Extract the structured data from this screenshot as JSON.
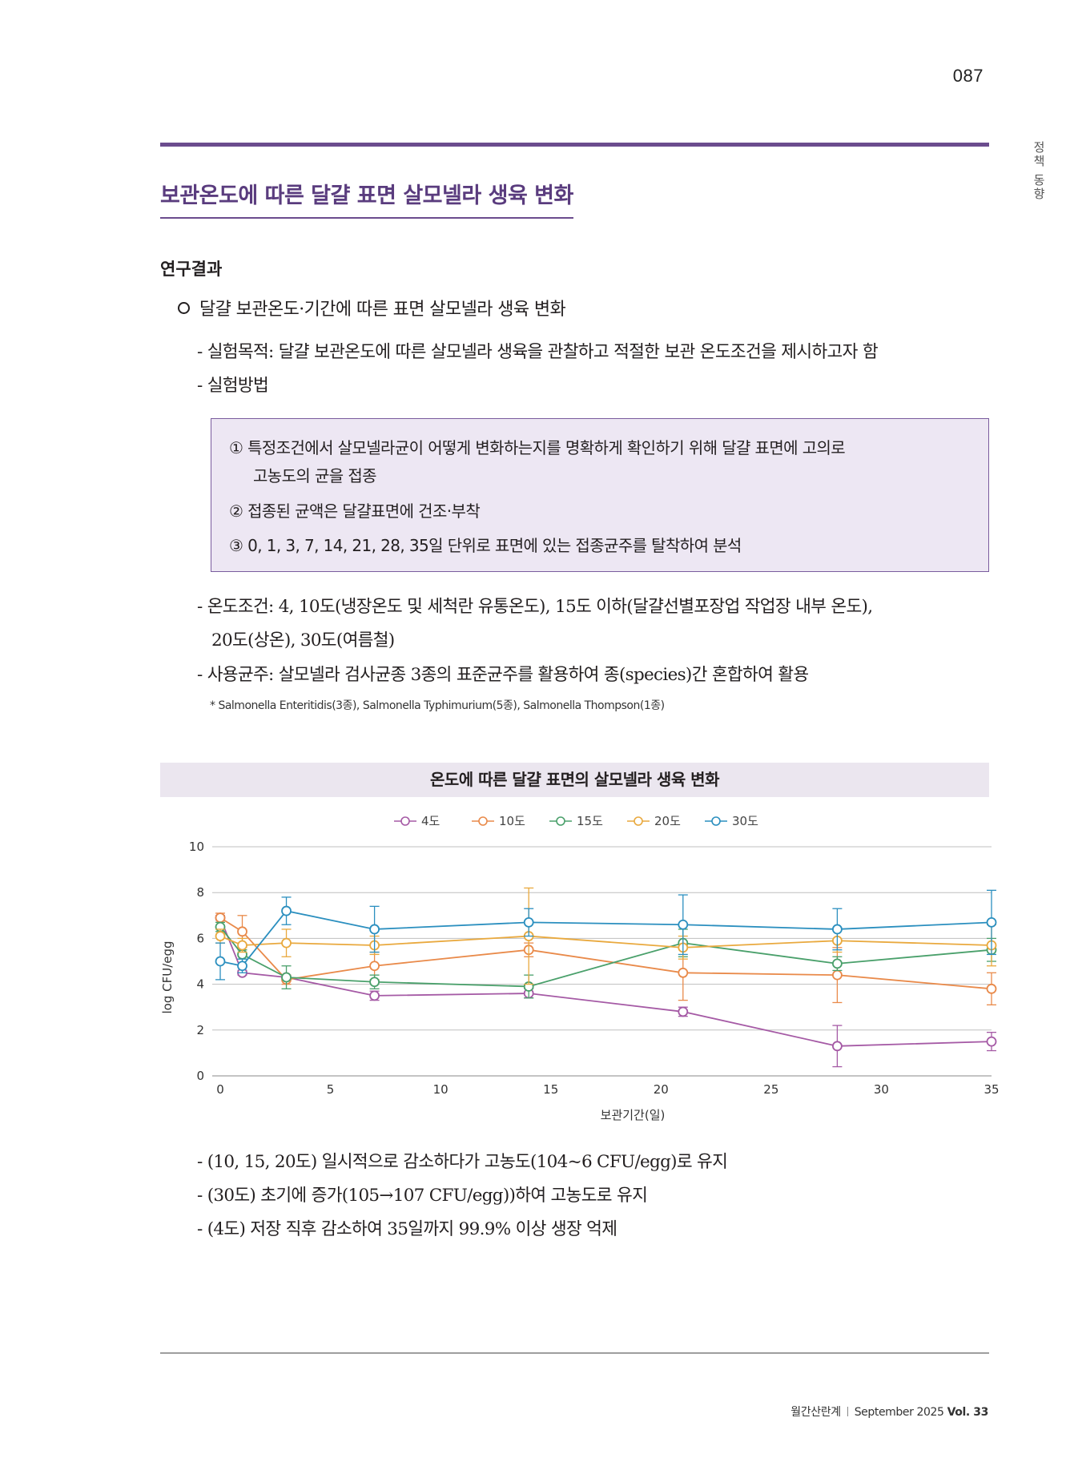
{
  "page": {
    "number": "087",
    "side_label": "정책 동향"
  },
  "section": {
    "title": "보관온도에 따른 달걀 표면 살모넬라 생육 변화",
    "subhead": "연구결과"
  },
  "body": {
    "bullet": "달걀 보관온도·기간에 따른 표면 살모넬라 생육 변화",
    "purpose": "- 실험목적: 달걀 보관온도에 따른 살모넬라 생육을 관찰하고 적절한 보관 온도조건을 제시하고자 함",
    "method_label": "- 실험방법",
    "method_items": [
      "① 특정조건에서 살모넬라균이 어떻게 변화하는지를 명확하게 확인하기 위해 달걀 표면에 고의로",
      "고농도의 균을 접종",
      "② 접종된 균액은 달걀표면에 건조·부착",
      "③ 0, 1, 3, 7, 14, 21, 28, 35일 단위로 표면에 있는 접종균주를 탈착하여 분석"
    ],
    "temp_line1": "- 온도조건: 4, 10도(냉장온도 및 세척란 유통온도), 15도 이하(달걀선별포장업 작업장 내부 온도),",
    "temp_line2": "20도(상온), 30도(여름철)",
    "strain_line": "- 사용균주: 살모넬라 검사균종 3종의 표준균주를 활용하여 종(species)간 혼합하여 활용",
    "footnote": "* Salmonella Enteritidis(3종), Salmonella Typhimurium(5종), Salmonella Thompson(1종)",
    "conclusions": [
      "- (10, 15, 20도) 일시적으로 감소하다가 고농도(104~6 CFU/egg)로 유지",
      "- (30도) 초기에 증가(105→107 CFU/egg))하여 고농도로 유지",
      "- (4도) 저장 직후 감소하여 35일까지 99.9% 이상 생장 억제"
    ]
  },
  "footer": {
    "magazine": "월간산란계",
    "issue": "September 2025",
    "volume": "Vol. 33"
  },
  "chart_data": {
    "type": "line",
    "title": "온도에 따른 달걀 표면의 살모넬라 생육 변화",
    "xlabel": "보관기간(일)",
    "ylabel": "log CFU/egg",
    "xlim": [
      0,
      35
    ],
    "ylim": [
      0,
      10
    ],
    "x_ticks": [
      0,
      5,
      10,
      15,
      20,
      25,
      30,
      35
    ],
    "y_ticks": [
      0,
      2,
      4,
      6,
      8,
      10
    ],
    "grid": "horizontal",
    "legend_position": "top-center",
    "x": [
      0,
      1,
      3,
      7,
      14,
      21,
      28,
      35
    ],
    "series": [
      {
        "name": "4도",
        "color": "#a55aa5",
        "values": [
          6.9,
          4.5,
          4.3,
          3.5,
          3.6,
          2.8,
          1.3,
          1.5
        ],
        "error": [
          0.1,
          0.1,
          0.1,
          0.2,
          0.2,
          0.2,
          0.9,
          0.4
        ]
      },
      {
        "name": "10도",
        "color": "#e98a4a",
        "values": [
          6.9,
          6.3,
          4.2,
          4.8,
          5.5,
          4.5,
          4.4,
          3.8
        ],
        "error": [
          0.2,
          0.7,
          0.2,
          0.6,
          0.3,
          1.2,
          1.2,
          0.7
        ]
      },
      {
        "name": "15도",
        "color": "#4aa06b",
        "values": [
          6.5,
          5.3,
          4.3,
          4.1,
          3.9,
          5.8,
          4.9,
          5.5
        ],
        "error": [
          0.2,
          0.2,
          0.5,
          0.3,
          0.5,
          0.6,
          0.3,
          0.5
        ]
      },
      {
        "name": "20도",
        "color": "#e9a93e",
        "values": [
          6.1,
          5.7,
          5.8,
          5.7,
          6.1,
          5.6,
          5.9,
          5.7
        ],
        "error": [
          0.3,
          0.3,
          0.6,
          0.4,
          2.1,
          0.5,
          0.5,
          0.9
        ]
      },
      {
        "name": "30도",
        "color": "#2b8fbf",
        "values": [
          5.0,
          4.8,
          7.2,
          6.4,
          6.7,
          6.6,
          6.4,
          6.7
        ],
        "error": [
          0.8,
          0.3,
          0.6,
          1.0,
          0.6,
          1.3,
          0.9,
          1.4
        ]
      }
    ]
  }
}
